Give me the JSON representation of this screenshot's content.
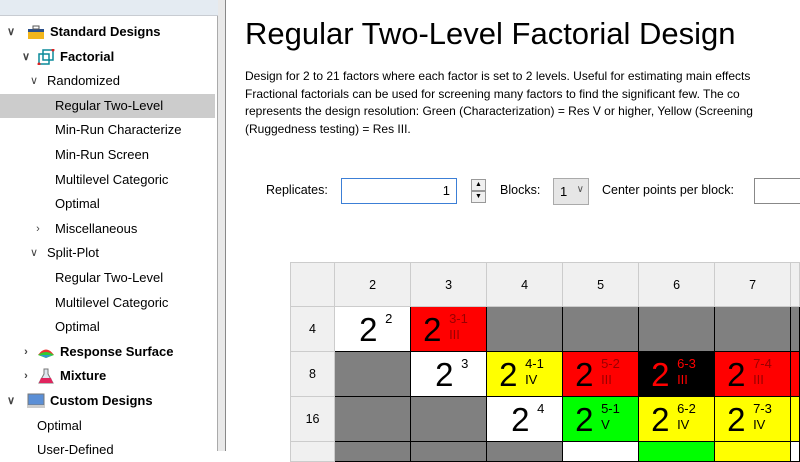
{
  "tree": [
    {
      "label": "Standard Designs",
      "level": 0,
      "bold": true,
      "chevron": "down",
      "icon": "toolbox-icon"
    },
    {
      "label": "Factorial",
      "level": 1,
      "bold": true,
      "chevron": "down",
      "icon": "cube-icon"
    },
    {
      "label": "Randomized",
      "level": 2,
      "chevron": "down"
    },
    {
      "label": "Regular Two-Level",
      "level": 3,
      "selected": true
    },
    {
      "label": "Min-Run Characterize",
      "level": 3
    },
    {
      "label": "Min-Run Screen",
      "level": 3
    },
    {
      "label": "Multilevel Categoric",
      "level": 3
    },
    {
      "label": "Optimal",
      "level": 3
    },
    {
      "label": "Miscellaneous",
      "level": 3,
      "chevron": "right"
    },
    {
      "label": "Split-Plot",
      "level": 2,
      "chevron": "down"
    },
    {
      "label": "Regular Two-Level",
      "level": 3
    },
    {
      "label": "Multilevel Categoric",
      "level": 3
    },
    {
      "label": "Optimal",
      "level": 3
    },
    {
      "label": "Response Surface",
      "level": 1,
      "bold": true,
      "chevron": "right",
      "icon": "surface-icon"
    },
    {
      "label": "Mixture",
      "level": 1,
      "bold": true,
      "chevron": "right",
      "icon": "flask-icon"
    },
    {
      "label": "Custom Designs",
      "level": 0,
      "bold": true,
      "chevron": "down",
      "icon": "computer-icon"
    },
    {
      "label": "Optimal",
      "level": 1
    },
    {
      "label": "User-Defined",
      "level": 1
    }
  ],
  "main": {
    "title": "Regular Two-Level Factorial Design",
    "description": [
      "Design for 2 to 21 factors where each factor is set to 2 levels. Useful for estimating main effects",
      "Fractional factorials can be used for screening many factors to find the significant few. The co",
      "represents the design resolution: Green (Characterization) = Res V or higher, Yellow (Screening",
      "(Ruggedness testing) = Res III."
    ],
    "replicates_label": "Replicates:",
    "replicates_value": "1",
    "blocks_label": "Blocks:",
    "blocks_value": "1",
    "center_points_label": "Center points per block:",
    "center_points_value": ""
  },
  "grid": {
    "col_headers": [
      "2",
      "3",
      "4",
      "5",
      "6",
      "7"
    ],
    "colors": {
      "white": "#ffffff",
      "red": "#ff0000",
      "yellow": "#ffff00",
      "green": "#00ff00",
      "black": "#000000",
      "gray": "#808080"
    },
    "rows": [
      {
        "runs": "4",
        "cells": [
          {
            "c": "white",
            "exp": "2",
            "full": true
          },
          {
            "c": "red",
            "exp": "3-1",
            "res": "III"
          },
          {
            "c": "gray"
          },
          {
            "c": "gray"
          },
          {
            "c": "gray"
          },
          {
            "c": "gray"
          }
        ]
      },
      {
        "runs": "8",
        "cells": [
          {
            "c": "gray"
          },
          {
            "c": "white",
            "exp": "3",
            "full": true
          },
          {
            "c": "yellow",
            "exp": "4-1",
            "res": "IV"
          },
          {
            "c": "red",
            "exp": "5-2",
            "res": "III"
          },
          {
            "c": "black",
            "exp": "6-3",
            "res": "III"
          },
          {
            "c": "red",
            "exp": "7-4",
            "res": "III"
          }
        ]
      },
      {
        "runs": "16",
        "cells": [
          {
            "c": "gray"
          },
          {
            "c": "gray"
          },
          {
            "c": "white",
            "exp": "4",
            "full": true
          },
          {
            "c": "green",
            "exp": "5-1",
            "res": "V"
          },
          {
            "c": "yellow",
            "exp": "6-2",
            "res": "IV"
          },
          {
            "c": "yellow",
            "exp": "7-3",
            "res": "IV"
          }
        ]
      }
    ],
    "partial_row": [
      "gray",
      "gray",
      "gray",
      "white",
      "green",
      "yellow"
    ]
  }
}
